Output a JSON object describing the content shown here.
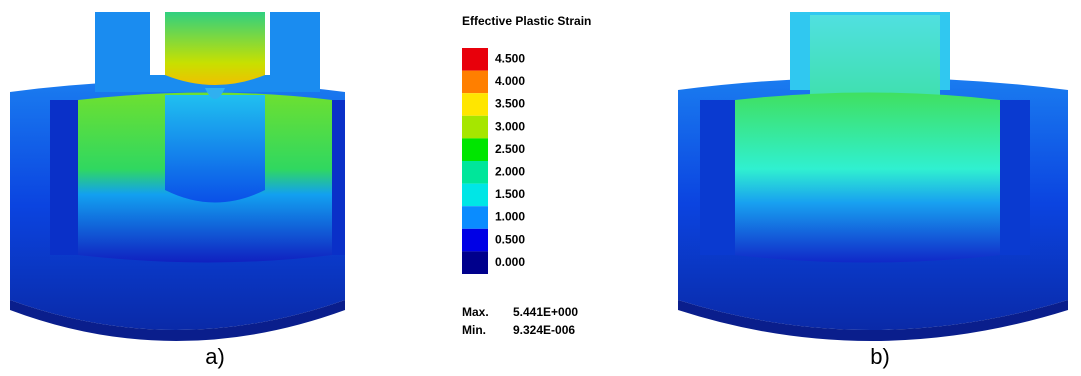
{
  "legend": {
    "title": "Effective Plastic Strain",
    "items": [
      {
        "label": "4.500",
        "color": "#e8000b"
      },
      {
        "label": "4.000",
        "color": "#ff7f00"
      },
      {
        "label": "3.500",
        "color": "#ffe600"
      },
      {
        "label": "3.000",
        "color": "#a6e600"
      },
      {
        "label": "2.500",
        "color": "#00e600"
      },
      {
        "label": "2.000",
        "color": "#00e69a"
      },
      {
        "label": "1.500",
        "color": "#00e6e6"
      },
      {
        "label": "1.000",
        "color": "#0a8cff"
      },
      {
        "label": "0.500",
        "color": "#0000e6"
      },
      {
        "label": "0.000",
        "color": "#00008c"
      }
    ],
    "max_label": "Max.",
    "max_value": "5.441E+000",
    "min_label": "Min.",
    "min_value": "9.324E-006"
  },
  "captions": [
    "a)",
    "b)"
  ]
}
